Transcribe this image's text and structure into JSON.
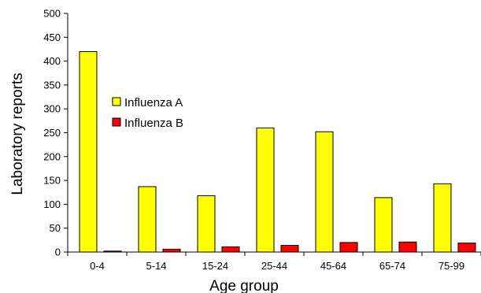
{
  "chart_data": {
    "type": "bar",
    "title": "",
    "xlabel": "Age group",
    "ylabel": "Laboratory reports",
    "categories": [
      "0-4",
      "5-14",
      "15-24",
      "25-44",
      "45-64",
      "65-74",
      "75-99"
    ],
    "series": [
      {
        "name": "Influenza A",
        "color": "#ffff00",
        "values": [
          420,
          137,
          118,
          260,
          252,
          114,
          143
        ]
      },
      {
        "name": "Influenza B",
        "color": "#ff0000",
        "values": [
          2,
          6,
          11,
          14,
          20,
          21,
          19
        ]
      }
    ],
    "ylim": [
      0,
      500
    ],
    "yticks": [
      0,
      50,
      100,
      150,
      200,
      250,
      300,
      350,
      400,
      450,
      500
    ],
    "grid": false,
    "legend_position": "upper-left inside plot"
  }
}
